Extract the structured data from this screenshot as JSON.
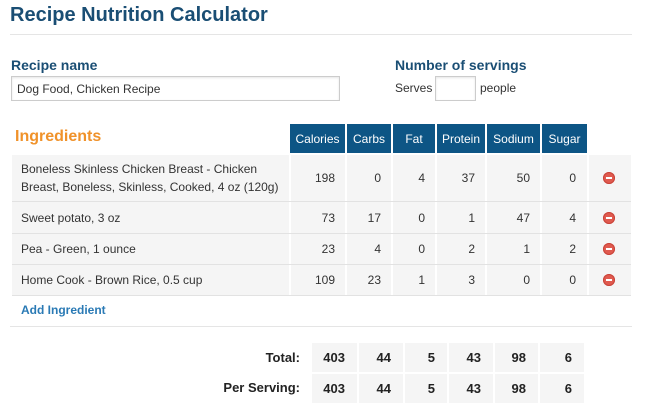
{
  "title": "Recipe Nutrition Calculator",
  "recipe": {
    "label": "Recipe name",
    "value": "Dog Food, Chicken Recipe"
  },
  "servings": {
    "label": "Number of servings",
    "prefix": "Serves",
    "value": "",
    "suffix": "people"
  },
  "ingredients_heading": "Ingredients",
  "columns": [
    "Calories",
    "Carbs",
    "Fat",
    "Protein",
    "Sodium",
    "Sugar"
  ],
  "rows": [
    {
      "name_line1": "Boneless Skinless Chicken Breast - Chicken",
      "name_line2": "Breast, Boneless, Skinless, Cooked, 4 oz (120g)",
      "values": [
        "198",
        "0",
        "4",
        "37",
        "50",
        "0"
      ]
    },
    {
      "name_line1": "Sweet potato, 3 oz",
      "values": [
        "73",
        "17",
        "0",
        "1",
        "47",
        "4"
      ]
    },
    {
      "name_line1": "Pea - Green, 1 ounce",
      "values": [
        "23",
        "4",
        "0",
        "2",
        "1",
        "2"
      ]
    },
    {
      "name_line1": "Home Cook - Brown Rice, 0.5 cup",
      "values": [
        "109",
        "23",
        "1",
        "3",
        "0",
        "0"
      ]
    }
  ],
  "remove_icon": "minus-circle-icon",
  "add_ingredient": "Add Ingredient",
  "totals": {
    "label": "Total:",
    "values": [
      "403",
      "44",
      "5",
      "43",
      "98",
      "6"
    ]
  },
  "per_serving": {
    "label": "Per Serving:",
    "values": [
      "403",
      "44",
      "5",
      "43",
      "98",
      "6"
    ]
  },
  "colors": {
    "title": "#1a4e74",
    "header_bg": "#0d5585",
    "ingredients": "#f0922a",
    "link": "#2a7ab5",
    "remove": "#e05a4f"
  }
}
